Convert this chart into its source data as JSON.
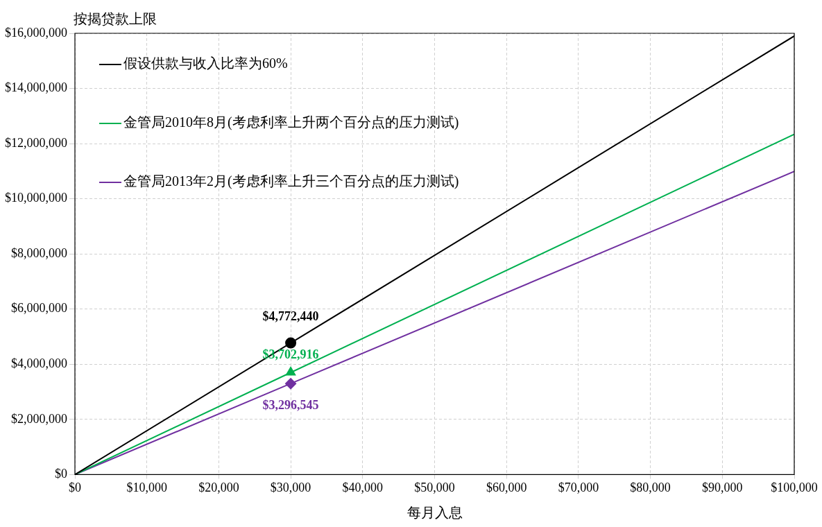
{
  "chart_data": {
    "type": "line",
    "ylabel": "按揭贷款上限",
    "xlabel": "每月入息",
    "x": [
      0,
      30000,
      100000
    ],
    "series": [
      {
        "name": "假设供款与收入比率为60%",
        "color": "#000000",
        "values": [
          0,
          4770000,
          15900000
        ]
      },
      {
        "name": "金管局2010年8月(考虑利率上升两个百分点的压力测试)",
        "color": "#00b050",
        "values": [
          0,
          3700000,
          12340000
        ]
      },
      {
        "name": "金管局2013年2月(考虑利率上升三个百分点的压力测试)",
        "color": "#7030a0",
        "values": [
          0,
          3300000,
          10990000
        ]
      },
      {
        "type": "scatter",
        "color": "#000000",
        "values": [
          null,
          4772440,
          null
        ],
        "marker": "circle",
        "value_labels": [
          null,
          "$4,772,440",
          null
        ]
      },
      {
        "type": "scatter",
        "color": "#00b050",
        "values": [
          null,
          3702916,
          null
        ],
        "marker": "triangle",
        "value_labels": [
          null,
          "$3,702,916",
          null
        ]
      },
      {
        "type": "scatter",
        "color": "#7030a0",
        "values": [
          null,
          3296545,
          null
        ],
        "marker": "diamond",
        "value_labels": [
          null,
          "$3,296,545",
          null
        ]
      }
    ],
    "xlim": [
      0,
      100000
    ],
    "xticks": [
      {
        "value": 0,
        "label": "$0"
      },
      {
        "value": 10000,
        "label": "$10,000"
      },
      {
        "value": 20000,
        "label": "$20,000"
      },
      {
        "value": 30000,
        "label": "$30,000"
      },
      {
        "value": 40000,
        "label": "$40,000"
      },
      {
        "value": 50000,
        "label": "$50,000"
      },
      {
        "value": 60000,
        "label": "$60,000"
      },
      {
        "value": 70000,
        "label": "$70,000"
      },
      {
        "value": 80000,
        "label": "$80,000"
      },
      {
        "value": 90000,
        "label": "$90,000"
      },
      {
        "value": 100000,
        "label": "$100,000"
      }
    ],
    "ylim": [
      0,
      16000000
    ],
    "yticks": [
      {
        "value": 0,
        "label": "$0"
      },
      {
        "value": 2000000,
        "label": "$2,000,000"
      },
      {
        "value": 4000000,
        "label": "$4,000,000"
      },
      {
        "value": 6000000,
        "label": "$6,000,000"
      },
      {
        "value": 8000000,
        "label": "$8,000,000"
      },
      {
        "value": 10000000,
        "label": "$10,000,000"
      },
      {
        "value": 12000000,
        "label": "$12,000,000"
      },
      {
        "value": 14000000,
        "label": "$14,000,000"
      },
      {
        "value": 16000000,
        "label": "$16,000,000"
      }
    ],
    "grid": true,
    "legend": "top left"
  }
}
